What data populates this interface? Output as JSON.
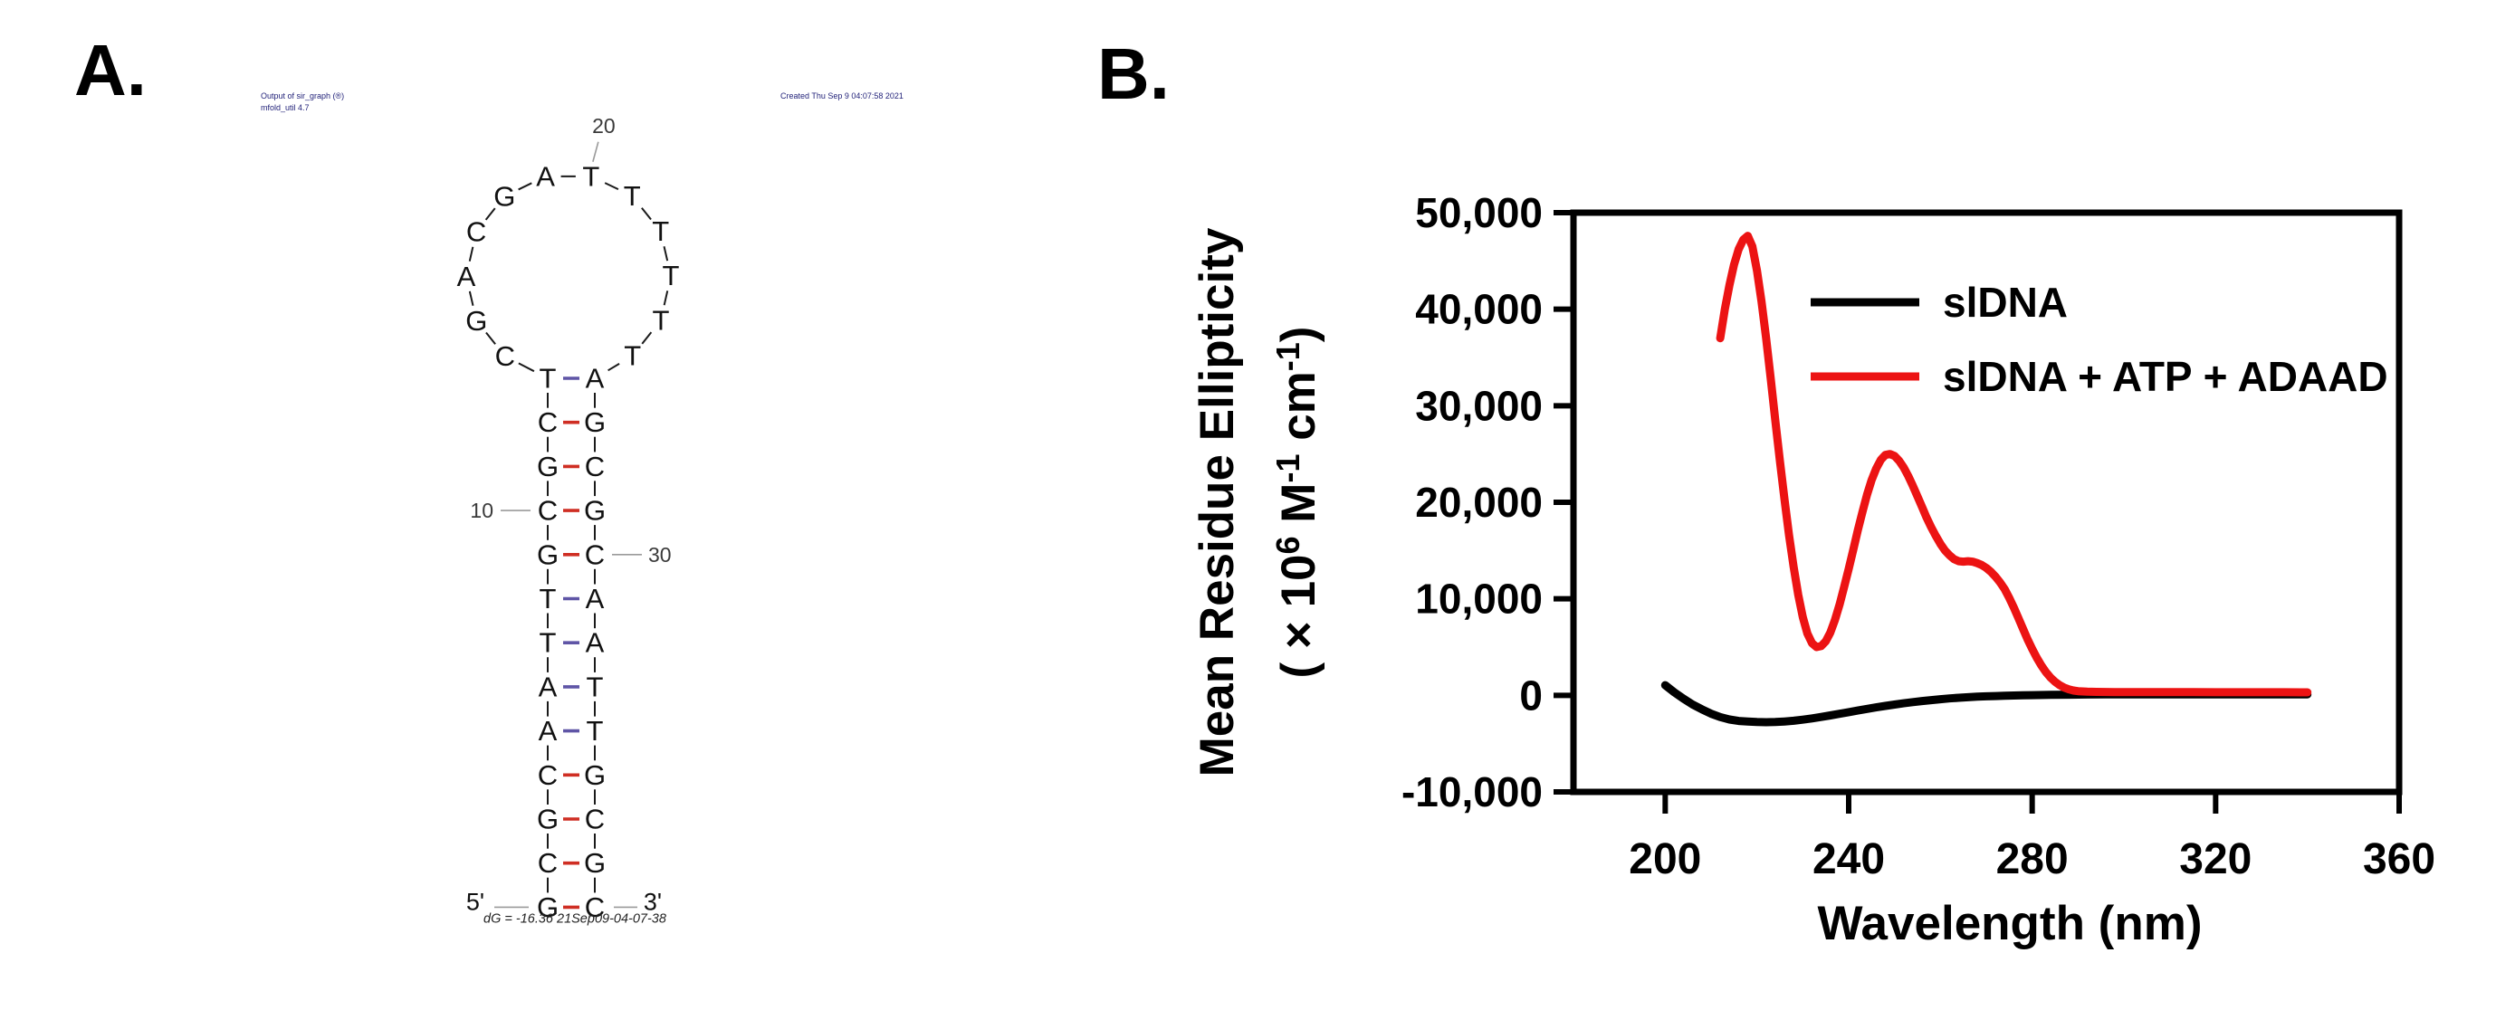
{
  "panelA": {
    "label": "A.",
    "header_left_line1": "Output of sir_graph (®)",
    "header_left_line2": "mfold_util 4.7",
    "header_right": "Created Thu Sep 9 04:07:58 2021",
    "footer_dg": "dG = -16.36 21Sep09-04-07-38",
    "five_prime": "5'",
    "three_prime": "3'",
    "header_color": "#23237a",
    "structure": {
      "stem_pairs": [
        {
          "left": "T",
          "right": "A",
          "bond": "at"
        },
        {
          "left": "C",
          "right": "G",
          "bond": "gc"
        },
        {
          "left": "G",
          "right": "C",
          "bond": "gc"
        },
        {
          "left": "C",
          "right": "G",
          "bond": "gc"
        },
        {
          "left": "G",
          "right": "C",
          "bond": "gc"
        },
        {
          "left": "T",
          "right": "A",
          "bond": "at"
        },
        {
          "left": "T",
          "right": "A",
          "bond": "at"
        },
        {
          "left": "A",
          "right": "T",
          "bond": "at"
        },
        {
          "left": "A",
          "right": "T",
          "bond": "at"
        },
        {
          "left": "C",
          "right": "G",
          "bond": "gc"
        },
        {
          "left": "G",
          "right": "C",
          "bond": "gc"
        },
        {
          "left": "C",
          "right": "G",
          "bond": "gc"
        },
        {
          "left": "G",
          "right": "C",
          "bond": "gc"
        }
      ],
      "loop_bases": [
        "C",
        "G",
        "A",
        "C",
        "G",
        "A",
        "T",
        "T",
        "T",
        "T",
        "T",
        "T"
      ],
      "position_labels": [
        {
          "text": "10",
          "target": "stem-row-3-left"
        },
        {
          "text": "20",
          "target": "loop-base-6"
        },
        {
          "text": "30",
          "target": "stem-row-4-right"
        }
      ],
      "gc_bond_color": "#cf2e23",
      "at_bond_color": "#5f55a6"
    }
  },
  "panelB": {
    "label": "B."
  },
  "chart_data": {
    "type": "line",
    "title": "",
    "xlabel": "Wavelength (nm)",
    "ylabel": "Mean Residue Ellipticity ( × 10⁶ M⁻¹ cm⁻¹)",
    "ylabel_line1": "Mean Residue Ellipticity",
    "ylabel_line2_parts": [
      {
        "t": "( × 10",
        "sup": false
      },
      {
        "t": "6",
        "sup": true
      },
      {
        "t": "  M",
        "sup": false
      },
      {
        "t": "-1",
        "sup": true
      },
      {
        "t": " cm",
        "sup": false
      },
      {
        "t": "-1",
        "sup": true
      },
      {
        "t": ")",
        "sup": false
      }
    ],
    "xlim": [
      180,
      360
    ],
    "ylim": [
      -10000,
      50000
    ],
    "xticks": [
      200,
      240,
      280,
      320,
      360
    ],
    "yticks": [
      50000,
      40000,
      30000,
      20000,
      10000,
      0,
      -10000
    ],
    "ytick_labels": [
      "50,000",
      "40,000",
      "30,000",
      "20,000",
      "10,000",
      "0",
      "-10,000"
    ],
    "grid": false,
    "legend_position": "top-right-inside",
    "series": [
      {
        "name": "slDNA",
        "color": "#000000",
        "points": [
          [
            200,
            1050
          ],
          [
            202,
            300
          ],
          [
            204,
            -350
          ],
          [
            206,
            -950
          ],
          [
            208,
            -1450
          ],
          [
            210,
            -1900
          ],
          [
            212,
            -2250
          ],
          [
            214,
            -2500
          ],
          [
            216,
            -2650
          ],
          [
            218,
            -2720
          ],
          [
            220,
            -2760
          ],
          [
            222,
            -2780
          ],
          [
            224,
            -2760
          ],
          [
            226,
            -2710
          ],
          [
            228,
            -2630
          ],
          [
            230,
            -2520
          ],
          [
            232,
            -2390
          ],
          [
            234,
            -2240
          ],
          [
            236,
            -2080
          ],
          [
            238,
            -1910
          ],
          [
            240,
            -1740
          ],
          [
            242,
            -1570
          ],
          [
            244,
            -1400
          ],
          [
            246,
            -1240
          ],
          [
            248,
            -1090
          ],
          [
            250,
            -950
          ],
          [
            252,
            -820
          ],
          [
            254,
            -700
          ],
          [
            256,
            -590
          ],
          [
            258,
            -490
          ],
          [
            260,
            -400
          ],
          [
            262,
            -320
          ],
          [
            264,
            -250
          ],
          [
            266,
            -190
          ],
          [
            268,
            -140
          ],
          [
            270,
            -100
          ],
          [
            272,
            -70
          ],
          [
            274,
            -40
          ],
          [
            276,
            -20
          ],
          [
            278,
            0
          ],
          [
            280,
            20
          ],
          [
            284,
            50
          ],
          [
            288,
            70
          ],
          [
            292,
            85
          ],
          [
            296,
            95
          ],
          [
            300,
            100
          ],
          [
            305,
            105
          ],
          [
            310,
            108
          ],
          [
            315,
            110
          ],
          [
            320,
            110
          ],
          [
            325,
            110
          ],
          [
            330,
            110
          ],
          [
            335,
            110
          ],
          [
            340,
            110
          ]
        ]
      },
      {
        "name": "slDNA + ATP + ADAAD",
        "color": "#ec1313",
        "points": [
          [
            212,
            37000
          ],
          [
            213,
            40000
          ],
          [
            214,
            42500
          ],
          [
            215,
            44600
          ],
          [
            216,
            46200
          ],
          [
            217,
            47200
          ],
          [
            218,
            47600
          ],
          [
            219,
            46500
          ],
          [
            220,
            44000
          ],
          [
            221,
            40800
          ],
          [
            222,
            37000
          ],
          [
            223,
            32800
          ],
          [
            224,
            28500
          ],
          [
            225,
            24300
          ],
          [
            226,
            20300
          ],
          [
            227,
            16600
          ],
          [
            228,
            13300
          ],
          [
            229,
            10400
          ],
          [
            230,
            8100
          ],
          [
            231,
            6400
          ],
          [
            232,
            5400
          ],
          [
            233,
            5000
          ],
          [
            234,
            5100
          ],
          [
            235,
            5600
          ],
          [
            236,
            6500
          ],
          [
            237,
            7800
          ],
          [
            238,
            9400
          ],
          [
            239,
            11200
          ],
          [
            240,
            13100
          ],
          [
            241,
            15100
          ],
          [
            242,
            17100
          ],
          [
            243,
            19000
          ],
          [
            244,
            20800
          ],
          [
            245,
            22300
          ],
          [
            246,
            23500
          ],
          [
            247,
            24400
          ],
          [
            248,
            24900
          ],
          [
            249,
            25000
          ],
          [
            250,
            24800
          ],
          [
            251,
            24300
          ],
          [
            252,
            23600
          ],
          [
            253,
            22700
          ],
          [
            254,
            21700
          ],
          [
            255,
            20600
          ],
          [
            256,
            19500
          ],
          [
            257,
            18400
          ],
          [
            258,
            17400
          ],
          [
            259,
            16500
          ],
          [
            260,
            15700
          ],
          [
            261,
            15000
          ],
          [
            262,
            14500
          ],
          [
            263,
            14100
          ],
          [
            264,
            13900
          ],
          [
            265,
            13850
          ],
          [
            266,
            13900
          ],
          [
            267,
            13850
          ],
          [
            268,
            13700
          ],
          [
            269,
            13500
          ],
          [
            270,
            13200
          ],
          [
            271,
            12800
          ],
          [
            272,
            12300
          ],
          [
            273,
            11700
          ],
          [
            274,
            11000
          ],
          [
            275,
            10100
          ],
          [
            276,
            9100
          ],
          [
            277,
            8000
          ],
          [
            278,
            6900
          ],
          [
            279,
            5800
          ],
          [
            280,
            4800
          ],
          [
            281,
            3900
          ],
          [
            282,
            3100
          ],
          [
            283,
            2400
          ],
          [
            284,
            1850
          ],
          [
            285,
            1400
          ],
          [
            286,
            1050
          ],
          [
            287,
            800
          ],
          [
            288,
            620
          ],
          [
            289,
            500
          ],
          [
            290,
            430
          ],
          [
            292,
            380
          ],
          [
            294,
            360
          ],
          [
            296,
            350
          ],
          [
            298,
            345
          ],
          [
            300,
            340
          ],
          [
            305,
            335
          ],
          [
            310,
            330
          ],
          [
            315,
            328
          ],
          [
            320,
            325
          ],
          [
            325,
            322
          ],
          [
            330,
            320
          ],
          [
            335,
            318
          ],
          [
            340,
            315
          ]
        ]
      }
    ]
  }
}
